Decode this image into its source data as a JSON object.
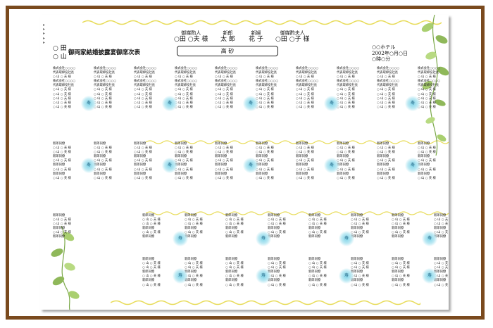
{
  "header": {
    "groom_father_label": "御媒酌人",
    "groom_father_names": "○田 ○夫 様",
    "groom_label": "新郎",
    "groom_name": "太 郎",
    "bride_label": "新婦",
    "bride_name": "花 子",
    "matron_label": "御媒酌夫人",
    "matron_names": "○田 ○子 様",
    "head_table": "高 砂",
    "family_1": "○ 田",
    "family_2": "○ 山",
    "title": "御両家結婚披露宴御席次表",
    "hotel": "○○ホテル",
    "date": "2002年○月○日",
    "time": "○時○分"
  },
  "guest_lines": {
    "company": "株式会社○○○○",
    "rep_title": "代表取締役社長",
    "guest": "○ 山 ○ 夫 様",
    "classmate": "新郎同僚"
  },
  "table_mark": "寿",
  "colors": {
    "frame": "#7a4a1e",
    "table_glow": "#7fd3e8",
    "scroll": "#e8dc5a",
    "ivy": "#8fb85a"
  }
}
